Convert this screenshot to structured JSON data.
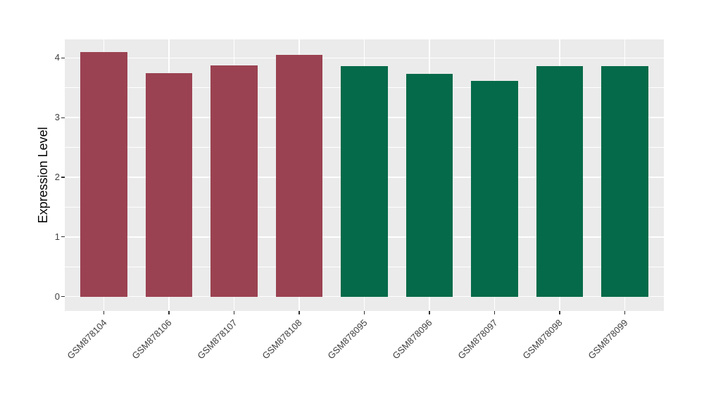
{
  "figure": {
    "background": "#FFFFFF"
  },
  "chart_data": {
    "type": "bar",
    "title": "",
    "xlabel": "",
    "ylabel": "Expression Level",
    "categories": [
      "GSM878104",
      "GSM878106",
      "GSM878107",
      "GSM878108",
      "GSM878095",
      "GSM878096",
      "GSM878097",
      "GSM878098",
      "GSM878099"
    ],
    "values": [
      4.1,
      3.74,
      3.87,
      4.05,
      3.86,
      3.73,
      3.61,
      3.86,
      3.86
    ],
    "bar_colors": [
      "#9B4252",
      "#9B4252",
      "#9B4252",
      "#9B4252",
      "#056A49",
      "#056A49",
      "#056A49",
      "#056A49",
      "#056A49"
    ],
    "group_colors": {
      "maroon": "#9B4252",
      "green": "#056A49"
    },
    "ylim": [
      -0.24,
      4.31
    ],
    "yticks": [
      0,
      1,
      2,
      3,
      4
    ],
    "yticks_minor": [
      0.5,
      1.5,
      2.5,
      3.5
    ],
    "panel_background": "#EBEBEB",
    "grid_color": "#FFFFFF",
    "grid": true,
    "legend": "none",
    "tick_color": "#333333",
    "label_color": "#404040",
    "x_tick_rotation_deg": 45,
    "bar_width_ratio": 0.72
  }
}
